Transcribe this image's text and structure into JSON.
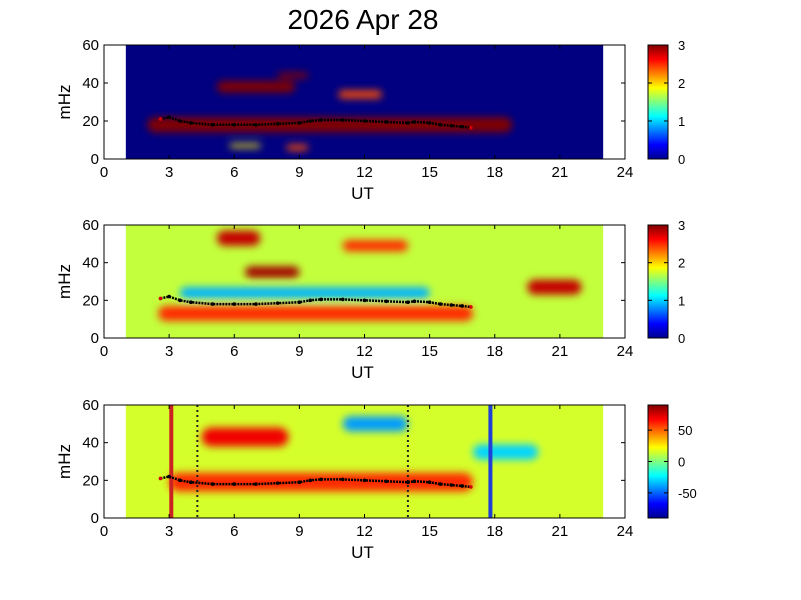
{
  "title": "2026 Apr 28",
  "chart_data": [
    {
      "type": "heatmap",
      "panel": "top",
      "xlabel": "UT",
      "ylabel": "mHz",
      "xlim": [
        0,
        24
      ],
      "ylim": [
        0,
        60
      ],
      "xticks": [
        0,
        3,
        6,
        9,
        12,
        15,
        18,
        21,
        24
      ],
      "yticks": [
        0,
        20,
        40,
        60
      ],
      "data_time_range": [
        1,
        23
      ],
      "colorbar": {
        "min": 0,
        "max": 3,
        "ticks": [
          0,
          1,
          2,
          3
        ]
      },
      "colormap": "jet",
      "background_value": 0,
      "regions": [
        {
          "ut": [
            2.0,
            18.8
          ],
          "mhz_center": 18,
          "mhz_halfwidth": 4,
          "value": 3
        },
        {
          "ut": [
            5.2,
            8.8
          ],
          "mhz_center": 38,
          "mhz_halfwidth": 3,
          "value": 3
        },
        {
          "ut": [
            8.0,
            9.4
          ],
          "mhz_center": 44,
          "mhz_halfwidth": 1.5,
          "value": 3
        },
        {
          "ut": [
            10.8,
            12.8
          ],
          "mhz_center": 34,
          "mhz_halfwidth": 2,
          "value": 2.4
        },
        {
          "ut": [
            8.4,
            9.4
          ],
          "mhz_center": 6,
          "mhz_halfwidth": 1.5,
          "value": 2.4
        },
        {
          "ut": [
            5.8,
            7.2
          ],
          "mhz_center": 7,
          "mhz_halfwidth": 1,
          "value": 1.9
        }
      ],
      "ridge": {
        "ut": [
          2.6,
          3.0,
          3.5,
          4.0,
          5.0,
          6.0,
          7.0,
          8.0,
          9.0,
          9.5,
          10.0,
          11.0,
          12.0,
          13.0,
          14.0,
          14.3,
          15.0,
          15.5,
          16.0,
          16.5,
          16.9
        ],
        "mhz": [
          21,
          22,
          20,
          19,
          18,
          18,
          18,
          18.5,
          19,
          20,
          20.5,
          20.5,
          20,
          19.5,
          19,
          19.5,
          19,
          18,
          17.5,
          17,
          16.5
        ]
      }
    },
    {
      "type": "heatmap",
      "panel": "middle",
      "xlabel": "UT",
      "ylabel": "mHz",
      "xlim": [
        0,
        24
      ],
      "ylim": [
        0,
        60
      ],
      "xticks": [
        0,
        3,
        6,
        9,
        12,
        15,
        18,
        21,
        24
      ],
      "yticks": [
        0,
        20,
        40,
        60
      ],
      "data_time_range": [
        1,
        23
      ],
      "colorbar": {
        "min": 0,
        "max": 3,
        "ticks": [
          0,
          1,
          2,
          3
        ]
      },
      "colormap": "jet",
      "background_value": 1.7,
      "regions": [
        {
          "ut": [
            2.5,
            17.0
          ],
          "mhz_center": 13,
          "mhz_halfwidth": 4,
          "value": 2.5
        },
        {
          "ut": [
            3.5,
            15.0
          ],
          "mhz_center": 24,
          "mhz_halfwidth": 3,
          "value": 0.9
        },
        {
          "ut": [
            6.5,
            9.0
          ],
          "mhz_center": 35,
          "mhz_halfwidth": 3,
          "value": 2.9
        },
        {
          "ut": [
            5.2,
            7.2
          ],
          "mhz_center": 53,
          "mhz_halfwidth": 4,
          "value": 2.8
        },
        {
          "ut": [
            11.0,
            14.0
          ],
          "mhz_center": 49,
          "mhz_halfwidth": 3,
          "value": 2.5
        },
        {
          "ut": [
            19.5,
            22.0
          ],
          "mhz_center": 27,
          "mhz_halfwidth": 4,
          "value": 2.8
        }
      ],
      "ridge": {
        "ut": [
          2.6,
          3.0,
          3.5,
          4.0,
          5.0,
          6.0,
          7.0,
          8.0,
          9.0,
          9.5,
          10.0,
          11.0,
          12.0,
          13.0,
          14.0,
          14.3,
          15.0,
          15.5,
          16.0,
          16.5,
          16.9
        ],
        "mhz": [
          21,
          22,
          20,
          19,
          18,
          18,
          18,
          18.5,
          19,
          20,
          20.5,
          20.5,
          20,
          19.5,
          19,
          19.5,
          19,
          18,
          17.5,
          17,
          16.5
        ]
      }
    },
    {
      "type": "heatmap",
      "panel": "bottom",
      "xlabel": "UT",
      "ylabel": "mHz",
      "xlim": [
        0,
        24
      ],
      "ylim": [
        0,
        60
      ],
      "xticks": [
        0,
        3,
        6,
        9,
        12,
        15,
        18,
        21,
        24
      ],
      "yticks": [
        0,
        20,
        40,
        60
      ],
      "data_time_range": [
        1,
        23
      ],
      "colorbar": {
        "min": -90,
        "max": 90,
        "ticks": [
          50,
          0,
          -50
        ]
      },
      "colormap": "jet",
      "background_value": 15,
      "regions": [
        {
          "ut": [
            3.0,
            17.0
          ],
          "mhz_center": 19,
          "mhz_halfwidth": 5,
          "value": 60
        },
        {
          "ut": [
            4.5,
            8.5
          ],
          "mhz_center": 43,
          "mhz_halfwidth": 5,
          "value": 70
        },
        {
          "ut": [
            11.0,
            14.0
          ],
          "mhz_center": 50,
          "mhz_halfwidth": 4,
          "value": -40
        },
        {
          "ut": [
            17.0,
            20.0
          ],
          "mhz_center": 35,
          "mhz_halfwidth": 4,
          "value": -30
        }
      ],
      "vertical_lines": [
        {
          "ut": 3.1,
          "color": "#cc2222",
          "style": "solid"
        },
        {
          "ut": 4.3,
          "color": "#222222",
          "style": "dotted"
        },
        {
          "ut": 14.0,
          "color": "#222222",
          "style": "dotted"
        },
        {
          "ut": 17.8,
          "color": "#1f3fd6",
          "style": "solid"
        }
      ],
      "ridge": {
        "ut": [
          2.6,
          3.0,
          3.5,
          4.0,
          5.0,
          6.0,
          7.0,
          8.0,
          9.0,
          9.5,
          10.0,
          11.0,
          12.0,
          13.0,
          14.0,
          14.3,
          15.0,
          15.5,
          16.0,
          16.5,
          16.9
        ],
        "mhz": [
          21,
          22,
          20,
          19,
          18,
          18,
          18,
          18.5,
          19,
          20,
          20.5,
          20.5,
          20,
          19.5,
          19,
          19.5,
          19,
          18,
          17.5,
          17,
          16.5
        ]
      }
    }
  ]
}
